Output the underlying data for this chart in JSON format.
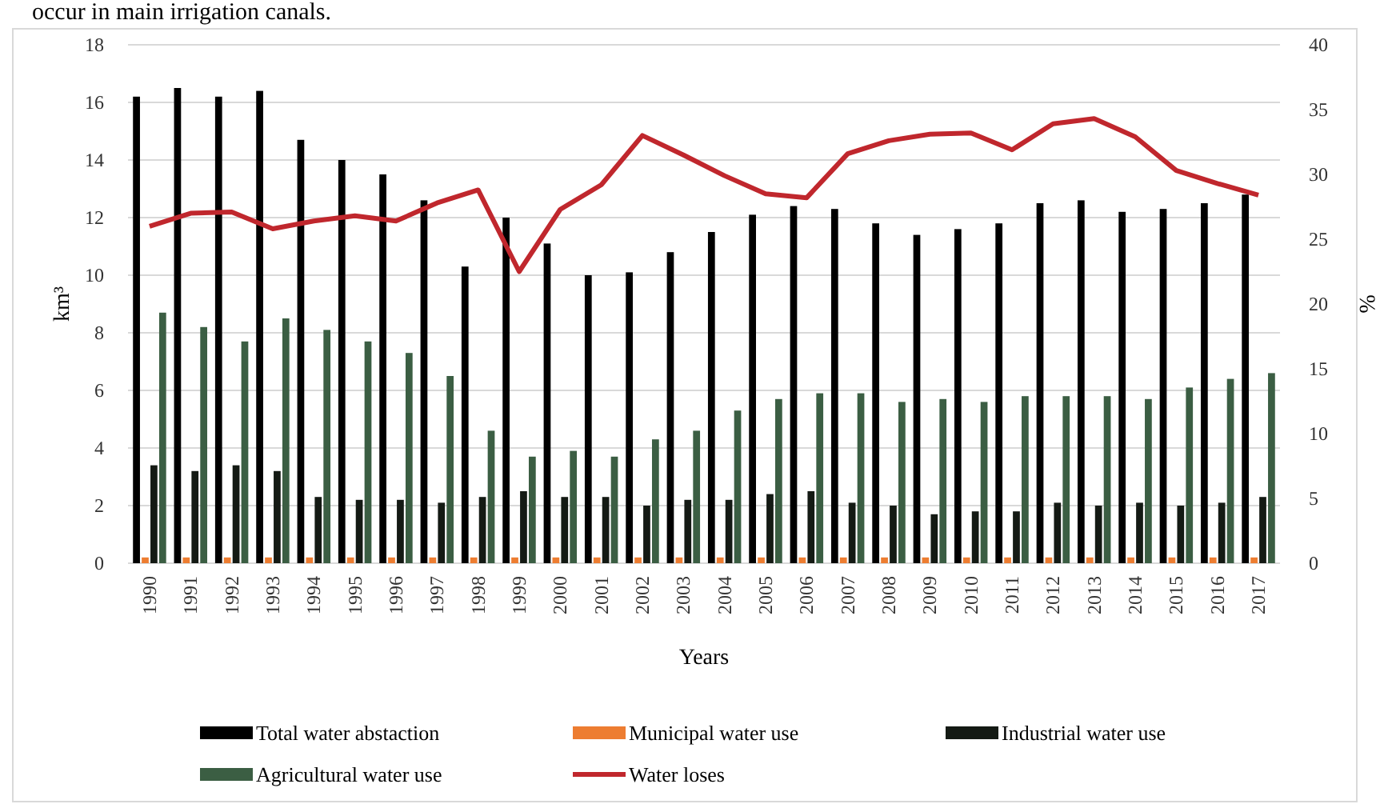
{
  "chart_data": {
    "type": "bar",
    "xlabel": "Years",
    "ylabel": "km³",
    "y2label": "%",
    "annotations": [
      "occur in main irrigation canals."
    ],
    "categories": [
      "1990",
      "1991",
      "1992",
      "1993",
      "1994",
      "1995",
      "1996",
      "1997",
      "1998",
      "1999",
      "2000",
      "2001",
      "2002",
      "2003",
      "2004",
      "2005",
      "2006",
      "2007",
      "2008",
      "2009",
      "2010",
      "2011",
      "2012",
      "2013",
      "2014",
      "2015",
      "2016",
      "2017"
    ],
    "series": [
      {
        "name": "Total water abstaction",
        "color": "#000000",
        "values": [
          16.2,
          16.5,
          16.2,
          16.4,
          14.7,
          14.0,
          13.5,
          12.6,
          10.3,
          12.0,
          11.1,
          10.0,
          10.1,
          10.8,
          11.5,
          12.1,
          12.4,
          12.3,
          11.8,
          11.4,
          11.6,
          11.8,
          12.5,
          12.6,
          12.2,
          12.3,
          12.5,
          12.8
        ]
      },
      {
        "name": "Municipal water use",
        "color": "#ed7d31",
        "values": [
          0.2,
          0.2,
          0.2,
          0.2,
          0.2,
          0.2,
          0.2,
          0.2,
          0.2,
          0.2,
          0.2,
          0.2,
          0.2,
          0.2,
          0.2,
          0.2,
          0.2,
          0.2,
          0.2,
          0.2,
          0.2,
          0.2,
          0.2,
          0.2,
          0.2,
          0.2,
          0.2,
          0.2
        ]
      },
      {
        "name": "Industrial water use",
        "color": "#141a14",
        "values": [
          3.4,
          3.2,
          3.4,
          3.2,
          2.3,
          2.2,
          2.2,
          2.1,
          2.3,
          2.5,
          2.3,
          2.3,
          2.0,
          2.2,
          2.2,
          2.4,
          2.5,
          2.1,
          2.0,
          1.7,
          1.8,
          1.8,
          2.1,
          2.0,
          2.1,
          2.0,
          2.1,
          2.3
        ]
      },
      {
        "name": "Agricultural water use",
        "color": "#3b5e43",
        "values": [
          8.7,
          8.2,
          7.7,
          8.5,
          8.1,
          7.7,
          7.3,
          6.5,
          4.6,
          3.7,
          3.9,
          3.7,
          4.3,
          4.6,
          5.3,
          5.7,
          5.9,
          5.9,
          5.6,
          5.7,
          5.6,
          5.8,
          5.8,
          5.8,
          5.7,
          6.1,
          6.4,
          6.6
        ]
      },
      {
        "name": "Water loses",
        "type": "line",
        "axis": "y2",
        "color": "#c0272d",
        "values": [
          26.0,
          27.0,
          27.1,
          25.8,
          26.4,
          26.8,
          26.4,
          27.8,
          28.8,
          22.5,
          27.3,
          29.2,
          33.0,
          31.5,
          29.9,
          28.5,
          28.2,
          31.6,
          32.6,
          33.1,
          33.2,
          31.9,
          33.9,
          34.3,
          32.9,
          30.3,
          29.3,
          28.4
        ]
      }
    ],
    "ylim": [
      0,
      18
    ],
    "yticks": [
      0,
      2,
      4,
      6,
      8,
      10,
      12,
      14,
      16,
      18
    ],
    "y2lim": [
      0,
      40
    ],
    "y2ticks": [
      0,
      5,
      10,
      15,
      20,
      25,
      30,
      35,
      40
    ],
    "grid": "y",
    "legend": "bottom"
  }
}
